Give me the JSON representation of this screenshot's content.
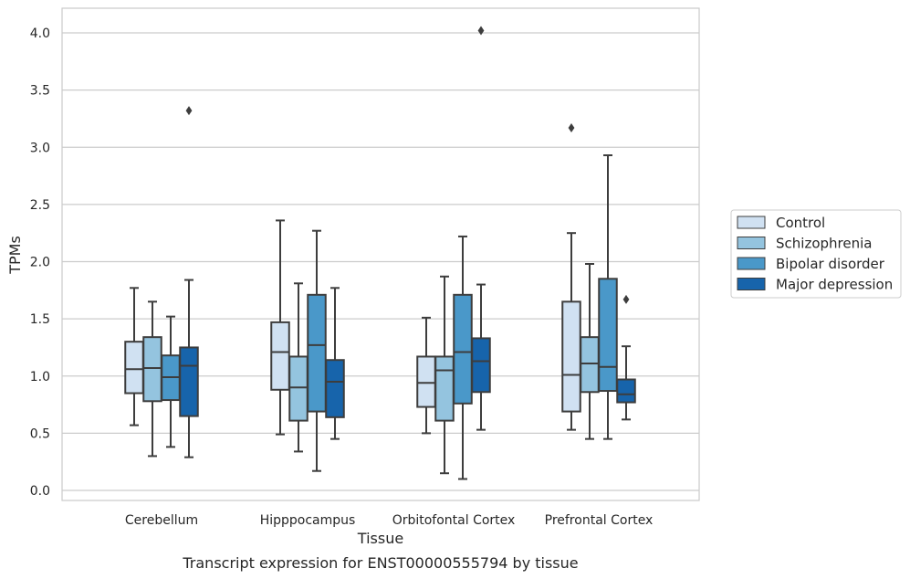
{
  "chart_data": {
    "type": "box",
    "caption": "Transcript expression for ENST00000555794 by tissue",
    "xlabel": "Tissue",
    "ylabel": "TPMs",
    "ylim": [
      -0.09,
      4.22
    ],
    "yticks": [
      "0.0",
      "0.5",
      "1.0",
      "1.5",
      "2.0",
      "2.5",
      "3.0",
      "3.5",
      "4.0"
    ],
    "grid": "horizontal",
    "legend_position": "right",
    "categories": [
      "Cerebellum",
      "Hipppocampus",
      "Orbitofontal Cortex",
      "Prefrontal Cortex"
    ],
    "series": [
      {
        "name": "Control",
        "color": "#d0e1f2",
        "boxes": [
          {
            "whislo": 0.57,
            "q1": 0.85,
            "med": 1.06,
            "q3": 1.3,
            "whishi": 1.77,
            "fliers": []
          },
          {
            "whislo": 0.49,
            "q1": 0.88,
            "med": 1.21,
            "q3": 1.47,
            "whishi": 2.36,
            "fliers": []
          },
          {
            "whislo": 0.5,
            "q1": 0.73,
            "med": 0.94,
            "q3": 1.17,
            "whishi": 1.51,
            "fliers": []
          },
          {
            "whislo": 0.53,
            "q1": 0.69,
            "med": 1.01,
            "q3": 1.65,
            "whishi": 2.25,
            "fliers": []
          }
        ]
      },
      {
        "name": "Schizophrenia",
        "color": "#94c4df",
        "boxes": [
          {
            "whislo": 0.3,
            "q1": 0.78,
            "med": 1.07,
            "q3": 1.34,
            "whishi": 1.65,
            "fliers": []
          },
          {
            "whislo": 0.34,
            "q1": 0.61,
            "med": 0.9,
            "q3": 1.17,
            "whishi": 1.81,
            "fliers": []
          },
          {
            "whislo": 0.15,
            "q1": 0.61,
            "med": 1.05,
            "q3": 1.17,
            "whishi": 1.87,
            "fliers": []
          },
          {
            "whislo": 0.45,
            "q1": 0.86,
            "med": 1.11,
            "q3": 1.34,
            "whishi": 1.98,
            "fliers": []
          }
        ]
      },
      {
        "name": "Bipolar disorder",
        "color": "#4a98c9",
        "boxes": [
          {
            "whislo": 0.38,
            "q1": 0.79,
            "med": 0.99,
            "q3": 1.18,
            "whishi": 1.52,
            "fliers": []
          },
          {
            "whislo": 0.17,
            "q1": 0.69,
            "med": 1.27,
            "q3": 1.71,
            "whishi": 2.27,
            "fliers": []
          },
          {
            "whislo": 0.1,
            "q1": 0.76,
            "med": 1.21,
            "q3": 1.71,
            "whishi": 2.22,
            "fliers": []
          },
          {
            "whislo": 0.45,
            "q1": 0.87,
            "med": 1.08,
            "q3": 1.85,
            "whishi": 2.93,
            "fliers": []
          }
        ]
      },
      {
        "name": "Major depression",
        "color": "#1764ab",
        "boxes": [
          {
            "whislo": 0.29,
            "q1": 0.65,
            "med": 1.09,
            "q3": 1.25,
            "whishi": 1.84,
            "fliers": [
              3.32
            ]
          },
          {
            "whislo": 0.45,
            "q1": 0.64,
            "med": 0.95,
            "q3": 1.14,
            "whishi": 1.77,
            "fliers": []
          },
          {
            "whislo": 0.53,
            "q1": 0.86,
            "med": 1.13,
            "q3": 1.33,
            "whishi": 1.8,
            "fliers": [
              4.02
            ]
          },
          {
            "whislo": 0.62,
            "q1": 0.77,
            "med": 0.84,
            "q3": 0.97,
            "whishi": 1.26,
            "fliers": [
              1.67
            ]
          }
        ]
      }
    ],
    "extra_fliers": [
      {
        "category": 3,
        "series": 0,
        "value": 3.17
      }
    ]
  }
}
